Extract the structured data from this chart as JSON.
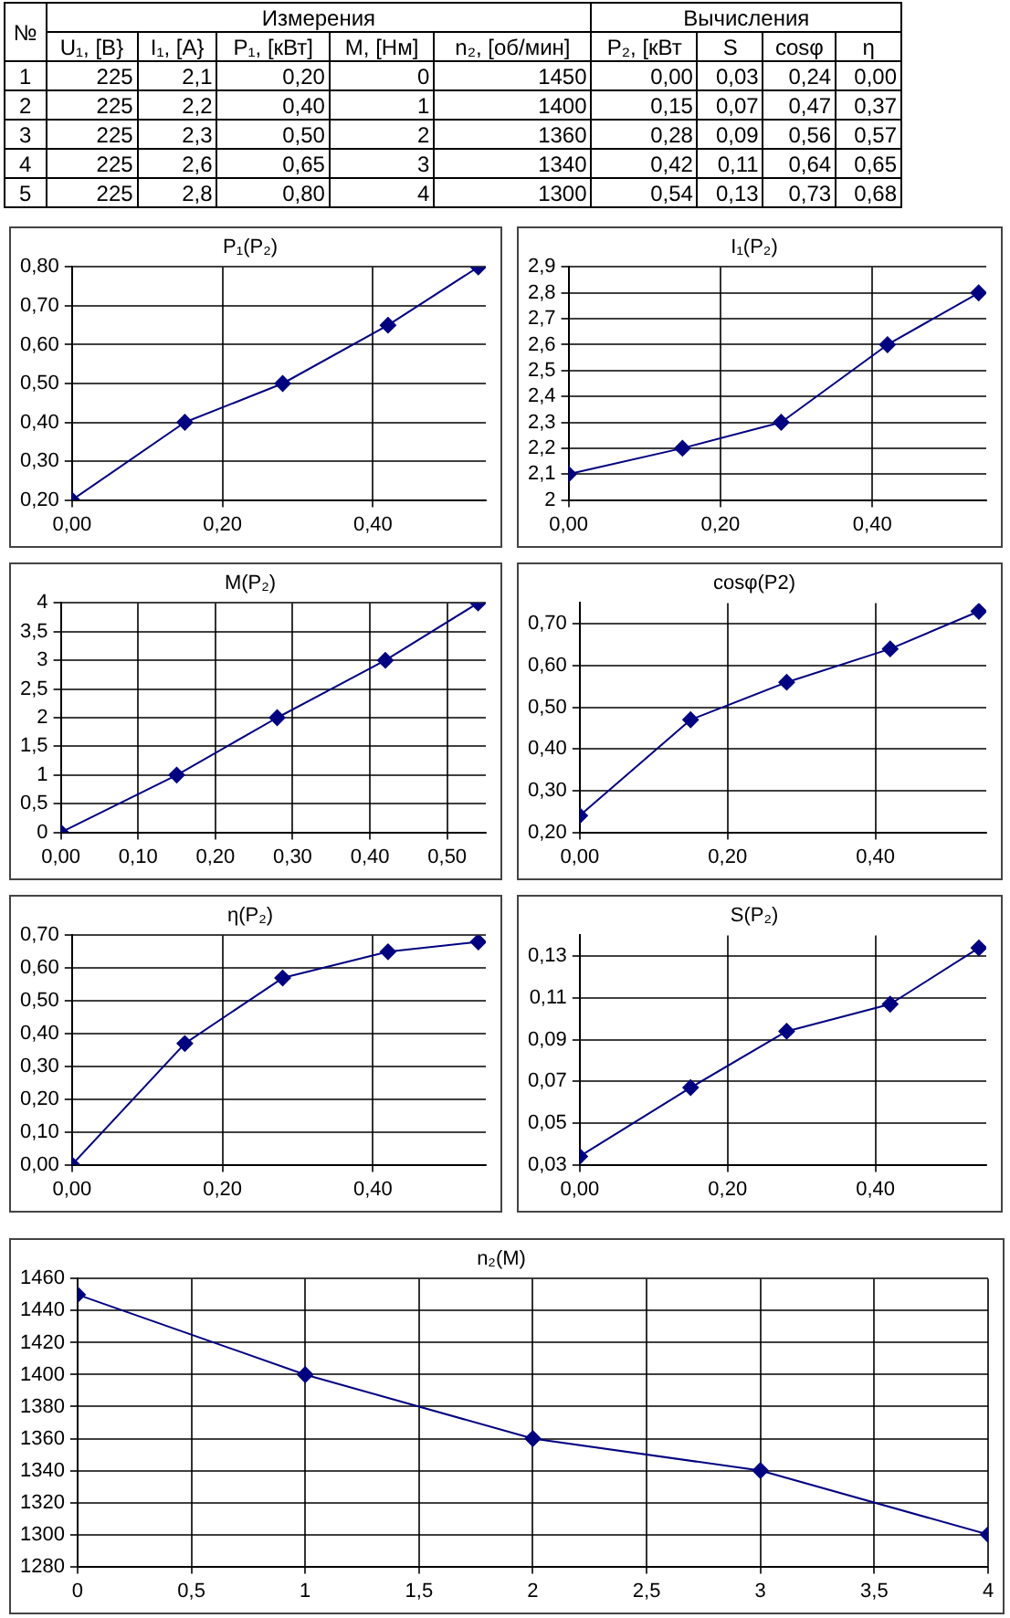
{
  "chart_data": [
    {
      "type": "heatmap",
      "ylabel": "№",
      "annotations": [
        "Измерения",
        "Вычисления"
      ],
      "categories": [
        "U₁, [В}",
        "I₁, [A}",
        "P₁, [кВт]",
        "M, [Нм]",
        "n₂, [об/мин]",
        "P₂, [кВт",
        "S",
        "cosφ",
        "η"
      ],
      "y_categories": [
        "1",
        "2",
        "3",
        "4",
        "5"
      ],
      "cells": [
        [
          225,
          2.1,
          0.2,
          0,
          1450,
          0,
          0.03,
          0.24,
          0
        ],
        [
          225,
          2.2,
          0.4,
          1,
          1400,
          0.15,
          0.07,
          0.47,
          0.37
        ],
        [
          225,
          2.3,
          0.5,
          2,
          1360,
          0.28,
          0.09,
          0.56,
          0.57
        ],
        [
          225,
          2.6,
          0.65,
          3,
          1340,
          0.42,
          0.11,
          0.64,
          0.65
        ],
        [
          225,
          2.8,
          0.8,
          4,
          1300,
          0.54,
          0.13,
          0.73,
          0.68
        ]
      ],
      "cell_labels": [
        [
          "225",
          "2,1",
          "0,20",
          "0",
          "1450",
          "0,00",
          "0,03",
          "0,24",
          "0,00"
        ],
        [
          "225",
          "2,2",
          "0,40",
          "1",
          "1400",
          "0,15",
          "0,07",
          "0,47",
          "0,37"
        ],
        [
          "225",
          "2,3",
          "0,50",
          "2",
          "1360",
          "0,28",
          "0,09",
          "0,56",
          "0,57"
        ],
        [
          "225",
          "2,6",
          "0,65",
          "3",
          "1340",
          "0,42",
          "0,11",
          "0,64",
          "0,65"
        ],
        [
          "225",
          "2,8",
          "0,80",
          "4",
          "1300",
          "0,54",
          "0,13",
          "0,73",
          "0,68"
        ]
      ]
    },
    {
      "type": "line",
      "title": "P₁(P₂)",
      "x": [
        0,
        0.15,
        0.28,
        0.42,
        0.54
      ],
      "series": [
        {
          "color": "#000080",
          "values": [
            0.2,
            0.4,
            0.5,
            0.65,
            0.8
          ]
        }
      ],
      "xlim": [
        0,
        0.55
      ],
      "xticks": [
        {
          "value": 0,
          "label": "0,00"
        },
        {
          "value": 0.2,
          "label": "0,20"
        },
        {
          "value": 0.4,
          "label": "0,40"
        }
      ],
      "ylim": [
        0.2,
        0.8
      ],
      "yticks": [
        {
          "value": 0.2,
          "label": "0,20"
        },
        {
          "value": 0.3,
          "label": "0,30"
        },
        {
          "value": 0.4,
          "label": "0,40"
        },
        {
          "value": 0.5,
          "label": "0,50"
        },
        {
          "value": 0.6,
          "label": "0,60"
        },
        {
          "value": 0.7,
          "label": "0,70"
        },
        {
          "value": 0.8,
          "label": "0,80"
        }
      ],
      "grid": true,
      "legend": false,
      "marker": "diamond"
    },
    {
      "type": "line",
      "title": "I₁(P₂)",
      "x": [
        0,
        0.15,
        0.28,
        0.42,
        0.54
      ],
      "series": [
        {
          "color": "#000080",
          "values": [
            2.1,
            2.2,
            2.3,
            2.6,
            2.8
          ]
        }
      ],
      "xlim": [
        0,
        0.55
      ],
      "xticks": [
        {
          "value": 0,
          "label": "0,00"
        },
        {
          "value": 0.2,
          "label": "0,20"
        },
        {
          "value": 0.4,
          "label": "0,40"
        }
      ],
      "ylim": [
        2,
        2.9
      ],
      "yticks": [
        2,
        {
          "value": 2.1,
          "label": "2,1"
        },
        {
          "value": 2.2,
          "label": "2,2"
        },
        {
          "value": 2.3,
          "label": "2,3"
        },
        {
          "value": 2.4,
          "label": "2,4"
        },
        {
          "value": 2.5,
          "label": "2,5"
        },
        {
          "value": 2.6,
          "label": "2,6"
        },
        {
          "value": 2.7,
          "label": "2,7"
        },
        {
          "value": 2.8,
          "label": "2,8"
        },
        {
          "value": 2.9,
          "label": "2,9"
        }
      ],
      "grid": true,
      "legend": false,
      "marker": "diamond"
    },
    {
      "type": "line",
      "title": "M(P₂)",
      "x": [
        0,
        0.15,
        0.28,
        0.42,
        0.54
      ],
      "series": [
        {
          "color": "#000080",
          "values": [
            0,
            1,
            2,
            3,
            4
          ]
        }
      ],
      "xlim": [
        0,
        0.55
      ],
      "xticks": [
        {
          "value": 0,
          "label": "0,00"
        },
        {
          "value": 0.1,
          "label": "0,10"
        },
        {
          "value": 0.2,
          "label": "0,20"
        },
        {
          "value": 0.3,
          "label": "0,30"
        },
        {
          "value": 0.4,
          "label": "0,40"
        },
        {
          "value": 0.5,
          "label": "0,50"
        }
      ],
      "ylim": [
        0,
        4
      ],
      "yticks": [
        0,
        {
          "value": 0.5,
          "label": "0,5"
        },
        1,
        {
          "value": 1.5,
          "label": "1,5"
        },
        2,
        {
          "value": 2.5,
          "label": "2,5"
        },
        3,
        {
          "value": 3.5,
          "label": "3,5"
        },
        4
      ],
      "grid": true,
      "legend": false,
      "marker": "diamond"
    },
    {
      "type": "line",
      "title": "cosφ(P2)",
      "x": [
        0,
        0.15,
        0.28,
        0.42,
        0.54
      ],
      "series": [
        {
          "color": "#000080",
          "values": [
            0.24,
            0.47,
            0.56,
            0.64,
            0.73
          ]
        }
      ],
      "xlim": [
        0,
        0.55
      ],
      "xticks": [
        {
          "value": 0,
          "label": "0,00"
        },
        {
          "value": 0.2,
          "label": "0,20"
        },
        {
          "value": 0.4,
          "label": "0,40"
        }
      ],
      "ylim": [
        0.2,
        0.75
      ],
      "yticks": [
        {
          "value": 0.2,
          "label": "0,20"
        },
        {
          "value": 0.3,
          "label": "0,30"
        },
        {
          "value": 0.4,
          "label": "0,40"
        },
        {
          "value": 0.5,
          "label": "0,50"
        },
        {
          "value": 0.6,
          "label": "0,60"
        },
        {
          "value": 0.7,
          "label": "0,70"
        }
      ],
      "grid": true,
      "legend": false,
      "marker": "diamond"
    },
    {
      "type": "line",
      "title": "η(P₂)",
      "x": [
        0,
        0.15,
        0.28,
        0.42,
        0.54
      ],
      "series": [
        {
          "color": "#000080",
          "values": [
            0,
            0.37,
            0.57,
            0.65,
            0.68
          ]
        }
      ],
      "xlim": [
        0,
        0.55
      ],
      "xticks": [
        {
          "value": 0,
          "label": "0,00"
        },
        {
          "value": 0.2,
          "label": "0,20"
        },
        {
          "value": 0.4,
          "label": "0,40"
        }
      ],
      "ylim": [
        0,
        0.7
      ],
      "yticks": [
        {
          "value": 0,
          "label": "0,00"
        },
        {
          "value": 0.1,
          "label": "0,10"
        },
        {
          "value": 0.2,
          "label": "0,20"
        },
        {
          "value": 0.3,
          "label": "0,30"
        },
        {
          "value": 0.4,
          "label": "0,40"
        },
        {
          "value": 0.5,
          "label": "0,50"
        },
        {
          "value": 0.6,
          "label": "0,60"
        },
        {
          "value": 0.7,
          "label": "0,70"
        }
      ],
      "grid": true,
      "legend": false,
      "marker": "diamond"
    },
    {
      "type": "line",
      "title": "S(P₂)",
      "x": [
        0,
        0.15,
        0.28,
        0.42,
        0.54
      ],
      "series": [
        {
          "color": "#000080",
          "values": [
            0.034,
            0.067,
            0.094,
            0.107,
            0.134
          ]
        }
      ],
      "xlim": [
        0,
        0.55
      ],
      "xticks": [
        {
          "value": 0,
          "label": "0,00"
        },
        {
          "value": 0.2,
          "label": "0,20"
        },
        {
          "value": 0.4,
          "label": "0,40"
        }
      ],
      "ylim": [
        0.03,
        0.14
      ],
      "yticks": [
        {
          "value": 0.03,
          "label": "0,03"
        },
        {
          "value": 0.05,
          "label": "0,05"
        },
        {
          "value": 0.07,
          "label": "0,07"
        },
        {
          "value": 0.09,
          "label": "0,09"
        },
        {
          "value": 0.11,
          "label": "0,11"
        },
        {
          "value": 0.13,
          "label": "0,13"
        }
      ],
      "grid": true,
      "legend": false,
      "marker": "diamond"
    },
    {
      "type": "line",
      "title": "n₂(M)",
      "x": [
        0,
        1,
        2,
        3,
        4
      ],
      "series": [
        {
          "color": "#000080",
          "values": [
            1450,
            1400,
            1360,
            1340,
            1300
          ]
        }
      ],
      "xlim": [
        0,
        4
      ],
      "xticks": [
        0,
        {
          "value": 0.5,
          "label": "0,5"
        },
        1,
        {
          "value": 1.5,
          "label": "1,5"
        },
        2,
        {
          "value": 2.5,
          "label": "2,5"
        },
        3,
        {
          "value": 3.5,
          "label": "3,5"
        },
        4
      ],
      "ylim": [
        1280,
        1460
      ],
      "yticks": [
        1280,
        1300,
        1320,
        1340,
        1360,
        1380,
        1400,
        1420,
        1440,
        1460
      ],
      "grid": true,
      "legend": false,
      "marker": "diamond"
    }
  ]
}
